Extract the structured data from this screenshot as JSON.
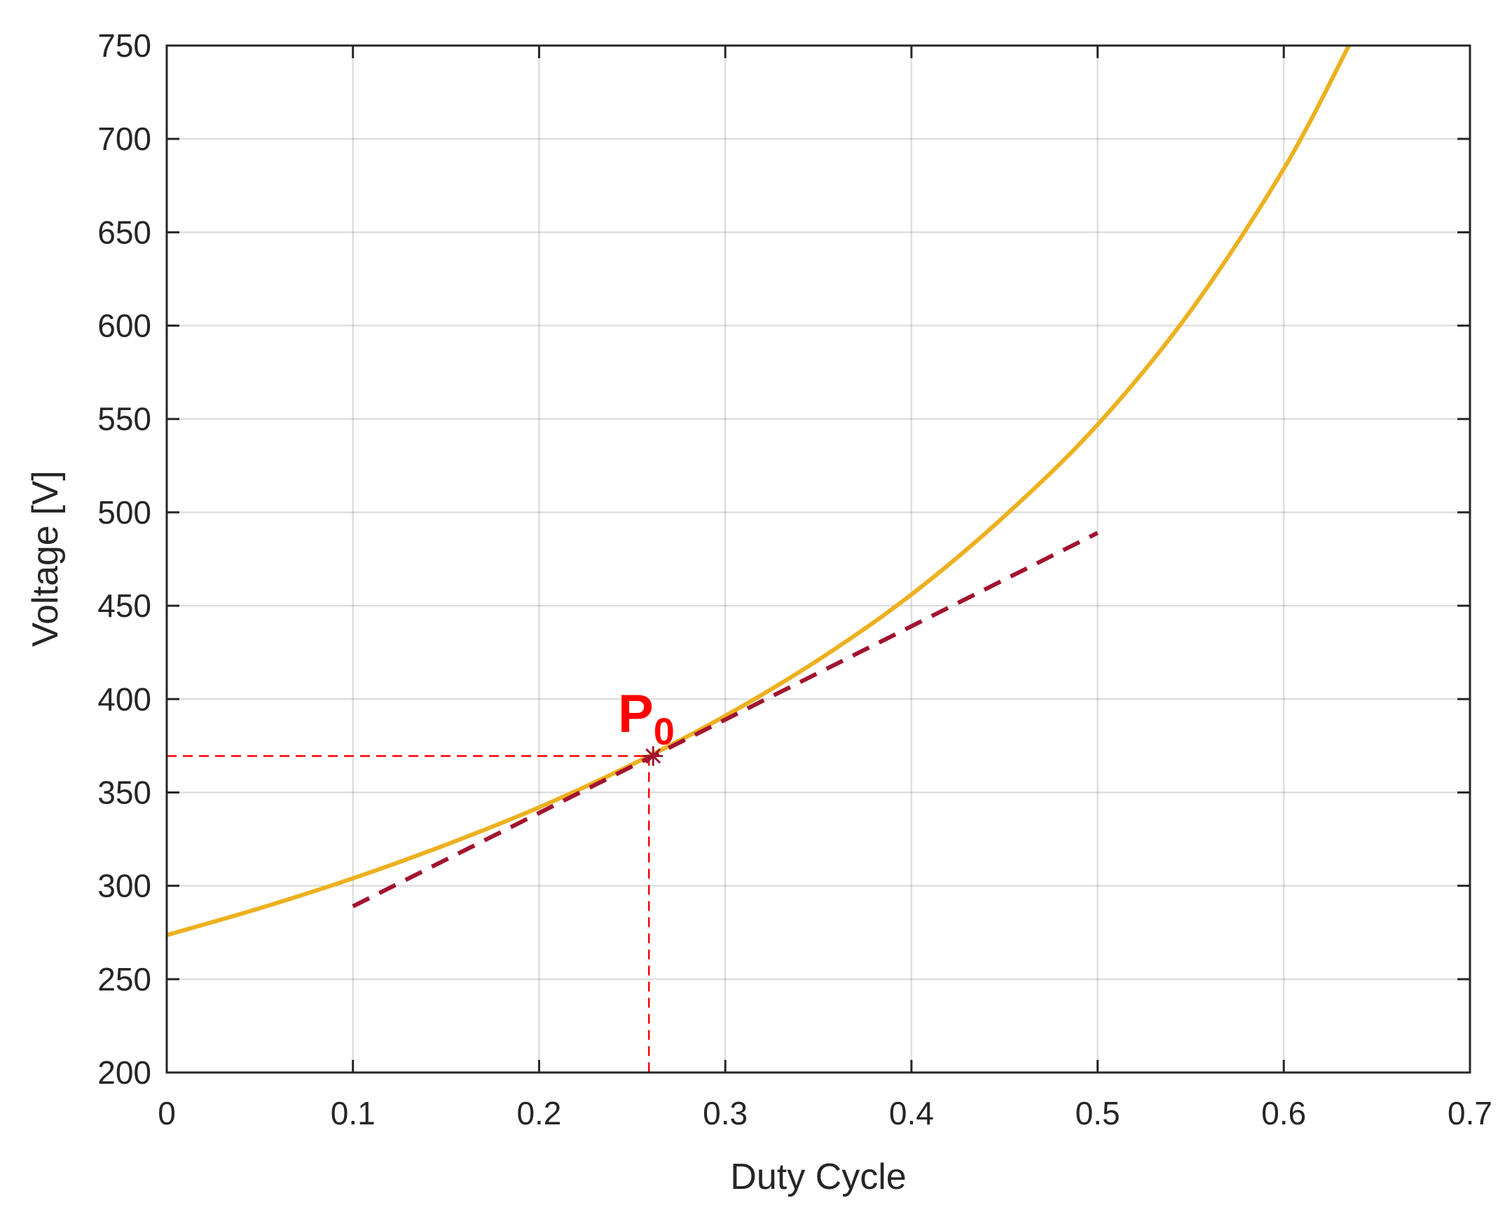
{
  "chart_data": {
    "type": "line",
    "title": "",
    "xlabel": "Duty Cycle",
    "ylabel": "Voltage [V]",
    "xlim": [
      0,
      0.7
    ],
    "ylim": [
      200,
      750
    ],
    "grid": true,
    "x_ticks": [
      "0",
      "0.1",
      "0.2",
      "0.3",
      "0.4",
      "0.5",
      "0.6",
      "0.7"
    ],
    "x_tick_values": [
      0,
      0.1,
      0.2,
      0.3,
      0.4,
      0.5,
      0.6,
      0.7
    ],
    "y_ticks": [
      "200",
      "250",
      "300",
      "350",
      "400",
      "450",
      "500",
      "550",
      "600",
      "650",
      "700",
      "750"
    ],
    "y_tick_values": [
      200,
      250,
      300,
      350,
      400,
      450,
      500,
      550,
      600,
      650,
      700,
      750
    ],
    "series": [
      {
        "style": "solid",
        "color": "#EDB120",
        "x": [
          0,
          0.05,
          0.1,
          0.15,
          0.2,
          0.25,
          0.3,
          0.35,
          0.4,
          0.45,
          0.5,
          0.55,
          0.6,
          0.635
        ],
        "y": [
          273.6,
          288,
          304,
          322,
          342,
          365,
          391,
          421,
          456,
          498,
          547,
          608,
          684,
          750
        ]
      },
      {
        "style": "dashed",
        "color": "#A2142F",
        "x": [
          0.1,
          0.5
        ],
        "y": [
          289,
          489
        ]
      }
    ],
    "operating_point": {
      "x": 0.259,
      "y": 369.5,
      "marker": "asterisk",
      "label": "P",
      "label_subscript": "0",
      "color": "#ff0000"
    }
  }
}
